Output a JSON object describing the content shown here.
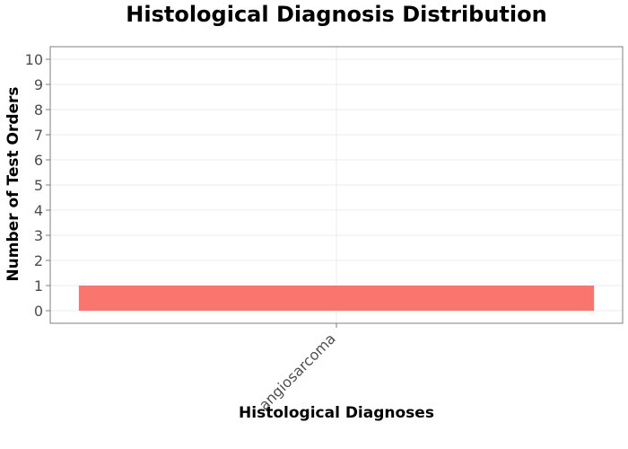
{
  "chart_data": {
    "type": "bar",
    "title": "Histological Diagnosis Distribution",
    "xlabel": "Histological Diagnoses",
    "ylabel": "Number of Test Orders",
    "categories": [
      "angiosarcoma"
    ],
    "values": [
      1
    ],
    "ylim": [
      -0.5,
      10.5
    ],
    "yticks": [
      0,
      1,
      2,
      3,
      4,
      5,
      6,
      7,
      8,
      9,
      10
    ],
    "grid": true,
    "legend": false,
    "bar_color": "#f8766d",
    "axis_color": "#7f7f7f",
    "grid_color": "#ebebeb"
  }
}
